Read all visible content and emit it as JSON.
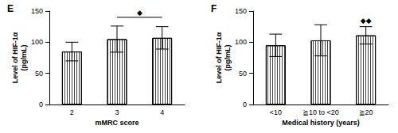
{
  "chart_data": [
    {
      "type": "bar",
      "title": "E",
      "y_label": "Level of HIF-1α\n(pg/mL)",
      "x_label": "mMRC score",
      "categories": [
        "2",
        "3",
        "4"
      ],
      "values": [
        85,
        105,
        107
      ],
      "errors": [
        15,
        21,
        18
      ],
      "ylim": [
        0,
        150
      ],
      "yticks": [
        0,
        50,
        100,
        150
      ],
      "annotations": [
        {
          "text": "◆",
          "x": [
            "3",
            "4"
          ],
          "y": 140
        }
      ]
    },
    {
      "type": "bar",
      "title": "F",
      "y_label": "Level of HIF-1α\n(pg/mL)",
      "x_label": "Medical history (years)",
      "categories": [
        "<10",
        "≧10 to <20",
        "≧20"
      ],
      "values": [
        95,
        103,
        111
      ],
      "errors": [
        18,
        25,
        14
      ],
      "ylim": [
        0,
        150
      ],
      "yticks": [
        0,
        50,
        100,
        150
      ],
      "annotations": [
        {
          "text": "◆◆",
          "x": [
            "≧20"
          ],
          "y": 128
        }
      ]
    }
  ]
}
